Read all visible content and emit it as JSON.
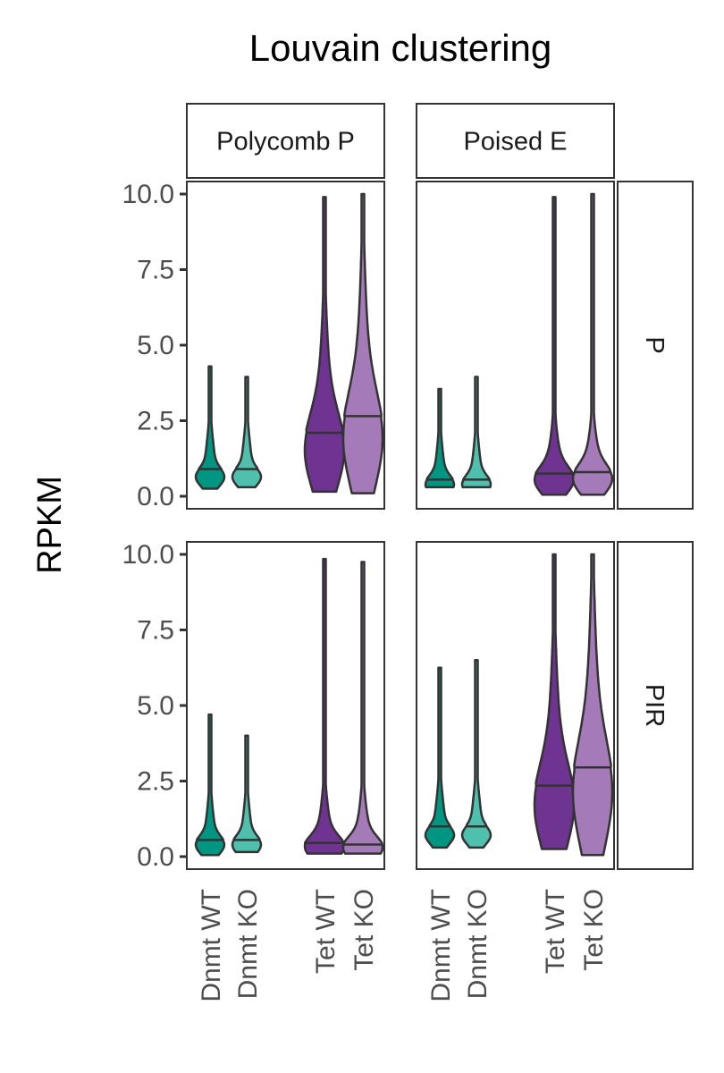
{
  "chart_data": {
    "type": "violin",
    "title": "Louvain clustering",
    "ylabel": "RPKM",
    "xlabel": "",
    "ylim": [
      0,
      10
    ],
    "yticks": [
      "0.0",
      "2.5",
      "5.0",
      "7.5",
      "10.0"
    ],
    "categories": [
      "Dnmt WT",
      "Dnmt KO",
      "Tet WT",
      "Tet KO"
    ],
    "colors": {
      "Dnmt WT": "#009682",
      "Dnmt KO": "#4fbfae",
      "Tet WT": "#6f3391",
      "Tet KO": "#a57ab8"
    },
    "column_facets": [
      "Polycomb P",
      "Poised E"
    ],
    "row_facets": [
      "P",
      "PIR"
    ],
    "panels": [
      {
        "col": "Polycomb P",
        "row": "P",
        "violins": [
          {
            "group": "Dnmt WT",
            "median": 0.9,
            "min": 0.25,
            "max": 4.3
          },
          {
            "group": "Dnmt KO",
            "median": 0.9,
            "min": 0.3,
            "max": 3.95
          },
          {
            "group": "Tet WT",
            "median": 2.1,
            "min": 0.15,
            "max": 9.9
          },
          {
            "group": "Tet KO",
            "median": 2.65,
            "min": 0.1,
            "max": 10.0
          }
        ]
      },
      {
        "col": "Poised E",
        "row": "P",
        "violins": [
          {
            "group": "Dnmt WT",
            "median": 0.55,
            "min": 0.3,
            "max": 3.55
          },
          {
            "group": "Dnmt KO",
            "median": 0.55,
            "min": 0.3,
            "max": 3.95
          },
          {
            "group": "Tet WT",
            "median": 0.75,
            "min": 0.05,
            "max": 9.9
          },
          {
            "group": "Tet KO",
            "median": 0.8,
            "min": 0.05,
            "max": 10.0
          }
        ]
      },
      {
        "col": "Polycomb P",
        "row": "PIR",
        "violins": [
          {
            "group": "Dnmt WT",
            "median": 0.55,
            "min": 0.05,
            "max": 4.7
          },
          {
            "group": "Dnmt KO",
            "median": 0.55,
            "min": 0.15,
            "max": 4.0
          },
          {
            "group": "Tet WT",
            "median": 0.45,
            "min": 0.1,
            "max": 9.85
          },
          {
            "group": "Tet KO",
            "median": 0.4,
            "min": 0.1,
            "max": 9.75
          }
        ]
      },
      {
        "col": "Poised E",
        "row": "PIR",
        "violins": [
          {
            "group": "Dnmt WT",
            "median": 1.0,
            "min": 0.3,
            "max": 6.25
          },
          {
            "group": "Dnmt KO",
            "median": 1.0,
            "min": 0.3,
            "max": 6.5
          },
          {
            "group": "Tet WT",
            "median": 2.35,
            "min": 0.25,
            "max": 10.0
          },
          {
            "group": "Tet KO",
            "median": 2.95,
            "min": 0.05,
            "max": 10.0
          }
        ]
      }
    ],
    "grid": false,
    "legend": "none"
  }
}
